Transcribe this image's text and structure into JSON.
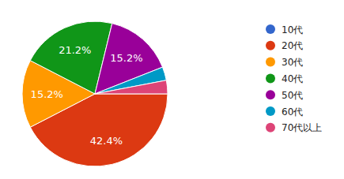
{
  "chart_data": {
    "type": "pie",
    "categories": [
      "10代",
      "20代",
      "30代",
      "40代",
      "50代",
      "60代",
      "70代以上"
    ],
    "values": [
      0,
      42.4,
      15.2,
      21.2,
      15.2,
      3.0,
      3.0
    ],
    "value_labels": [
      null,
      "42.4%",
      "15.2%",
      "21.2%",
      "15.2%",
      null,
      null
    ],
    "colors": [
      "#3366cc",
      "#dc3912",
      "#ff9900",
      "#109618",
      "#990099",
      "#0099c6",
      "#dd4477"
    ],
    "data_labels": true,
    "legend": "right"
  }
}
